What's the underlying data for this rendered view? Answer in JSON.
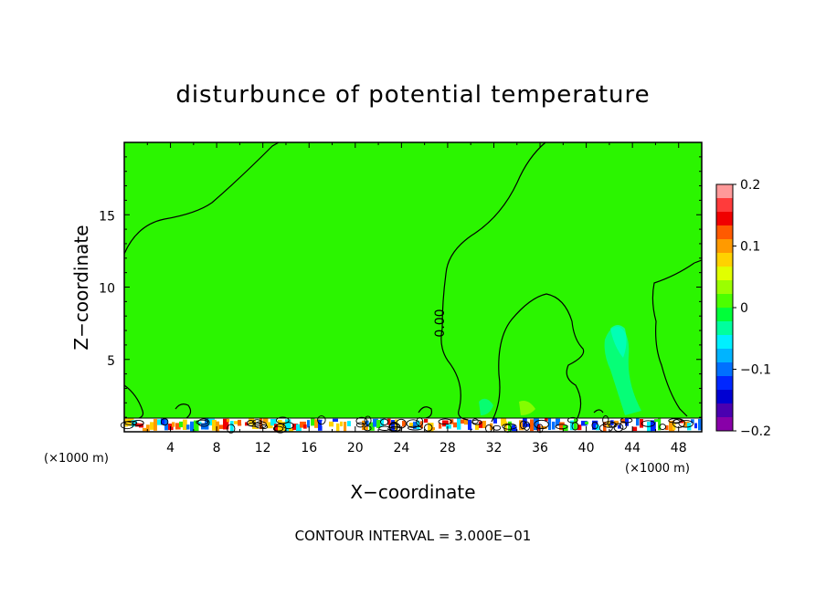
{
  "chart_data": {
    "type": "heatmap",
    "title": "disturbunce of potential temperature",
    "xlabel": "X−coordinate",
    "ylabel": "Z−coordinate",
    "x_unit_label_left": "(×1000 m)",
    "x_unit_label_right": "(×1000 m)",
    "footer": "CONTOUR INTERVAL = 3.000E−01",
    "contour_label": "0.00",
    "xlim": [
      0,
      50
    ],
    "ylim": [
      0,
      20
    ],
    "x_ticks": [
      4,
      8,
      12,
      16,
      20,
      24,
      28,
      32,
      36,
      40,
      44,
      48
    ],
    "x_tick_labels": [
      "4",
      "8",
      "12",
      "16",
      "20",
      "24",
      "28",
      "32",
      "36",
      "40",
      "44",
      "48"
    ],
    "y_ticks": [
      5,
      10,
      15
    ],
    "y_tick_labels": [
      "5",
      "10",
      "15"
    ],
    "field_value_dominant": 0.0,
    "colorbar": {
      "range": [
        -0.2,
        0.2
      ],
      "tick_values": [
        0.2,
        0.1,
        0,
        -0.1,
        -0.2
      ],
      "tick_labels": [
        "0.2",
        "0.1",
        "0",
        "−0.1",
        "−0.2"
      ],
      "colors": [
        "#ff9999",
        "#ff3b3b",
        "#f00000",
        "#ff5a00",
        "#ff9a00",
        "#ffd200",
        "#e1ff00",
        "#9bff00",
        "#4cff00",
        "#00ff39",
        "#00ff9e",
        "#00f0ff",
        "#00b4ff",
        "#0070ff",
        "#0027ff",
        "#0000d2",
        "#4a00b0",
        "#8800a8"
      ]
    },
    "field_color": "#2bf500"
  }
}
